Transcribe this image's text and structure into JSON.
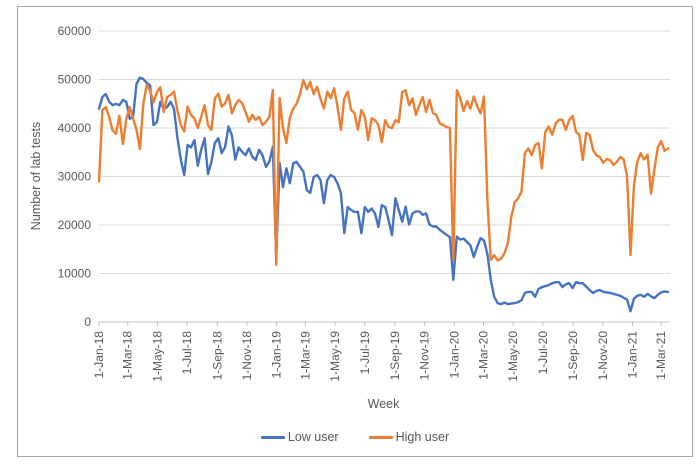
{
  "figure": {
    "background": "#ffffff",
    "border_color": "#a8a8a8",
    "text_color": "#595959",
    "gridline_color": "#d9d9d9",
    "axisline_color": "#bfbfbf"
  },
  "chart_data": {
    "type": "line",
    "title": "",
    "xlabel": "Week",
    "ylabel": "Number of lab tests",
    "ylim": [
      0,
      60000
    ],
    "grid": "horizontal",
    "legend_position": "bottom",
    "x_unit": "weekly starting 1-Jan-18",
    "y_ticks": [
      "0",
      "10000",
      "20000",
      "30000",
      "40000",
      "50000",
      "60000"
    ],
    "x_ticks": [
      {
        "label": "1-Jan-18",
        "week": 0
      },
      {
        "label": "1-Mar-18",
        "week": 8.43
      },
      {
        "label": "1-May-18",
        "week": 17.14
      },
      {
        "label": "1-Jul-18",
        "week": 25.86
      },
      {
        "label": "1-Sep-18",
        "week": 34.71
      },
      {
        "label": "1-Nov-18",
        "week": 43.43
      },
      {
        "label": "1-Jan-19",
        "week": 52.14
      },
      {
        "label": "1-Mar-19",
        "week": 60.57
      },
      {
        "label": "1-May-19",
        "week": 69.29
      },
      {
        "label": "1-Jul-19",
        "week": 78
      },
      {
        "label": "1-Sep-19",
        "week": 86.86
      },
      {
        "label": "1-Nov-19",
        "week": 95.57
      },
      {
        "label": "1-Jan-20",
        "week": 104.29
      },
      {
        "label": "1-Mar-20",
        "week": 112.86
      },
      {
        "label": "1-May-20",
        "week": 121.57
      },
      {
        "label": "1-Jul-20",
        "week": 130.29
      },
      {
        "label": "1-Sep-20",
        "week": 139.14
      },
      {
        "label": "1-Nov-20",
        "week": 147.86
      },
      {
        "label": "1-Jan-21",
        "week": 156.57
      },
      {
        "label": "1-Mar-21",
        "week": 165
      }
    ],
    "series": [
      {
        "name": "Low user",
        "color": "#4472C4",
        "values": [
          44000,
          46400,
          47000,
          45400,
          44700,
          45000,
          44700,
          45800,
          45400,
          41900,
          42300,
          49100,
          50400,
          50100,
          49300,
          48800,
          40600,
          41200,
          45400,
          43900,
          44300,
          45400,
          44000,
          38000,
          33500,
          30300,
          36500,
          36000,
          37500,
          32200,
          35500,
          37900,
          30500,
          33000,
          36900,
          37900,
          34800,
          36100,
          40300,
          38500,
          33500,
          36000,
          35100,
          34400,
          35800,
          34100,
          33400,
          35500,
          34400,
          32000,
          33100,
          36100,
          13400,
          32800,
          27800,
          31700,
          28600,
          32700,
          33000,
          32000,
          31000,
          27200,
          26600,
          29900,
          30300,
          29300,
          24500,
          29300,
          30300,
          29900,
          28600,
          26600,
          18300,
          23700,
          23100,
          22700,
          22700,
          18300,
          23700,
          22700,
          23400,
          22400,
          19600,
          24100,
          23700,
          21000,
          17900,
          25500,
          23100,
          20700,
          23800,
          20100,
          22400,
          22800,
          22800,
          22100,
          22400,
          20100,
          19700,
          19700,
          19000,
          18500,
          18000,
          17500,
          8700,
          17600,
          17000,
          17200,
          16500,
          15800,
          13400,
          15500,
          17300,
          16800,
          14000,
          8700,
          5200,
          3900,
          3700,
          4000,
          3700,
          3800,
          3900,
          4100,
          4500,
          6000,
          6200,
          6200,
          5200,
          6800,
          7200,
          7400,
          7600,
          8000,
          8200,
          8200,
          7200,
          7800,
          8000,
          7000,
          8200,
          8000,
          8000,
          7300,
          6600,
          6000,
          6400,
          6600,
          6200,
          6100,
          6000,
          5800,
          5600,
          5400,
          5000,
          4600,
          2200,
          4800,
          5400,
          5600,
          5200,
          5800,
          5300,
          4900,
          5600,
          6100,
          6300,
          6200
        ]
      },
      {
        "name": "High user",
        "color": "#ED7D31",
        "values": [
          29000,
          43700,
          44300,
          42200,
          39500,
          38800,
          42500,
          36700,
          41900,
          44300,
          42000,
          39600,
          35700,
          45000,
          48800,
          47800,
          45300,
          47400,
          48400,
          43300,
          46400,
          46800,
          47500,
          43700,
          40600,
          39300,
          44400,
          42700,
          42000,
          40000,
          42300,
          44700,
          40600,
          39600,
          46100,
          47100,
          44400,
          45100,
          46800,
          43000,
          44700,
          45800,
          45100,
          43400,
          41300,
          42700,
          41700,
          42300,
          40600,
          41300,
          42300,
          47800,
          11800,
          46200,
          40000,
          36900,
          42100,
          44000,
          45000,
          47000,
          49900,
          48000,
          49500,
          47000,
          48500,
          46000,
          44000,
          47500,
          46100,
          48200,
          44400,
          39600,
          46100,
          47500,
          43700,
          43100,
          39600,
          43700,
          42300,
          37500,
          42000,
          41600,
          40600,
          37100,
          41600,
          40200,
          40000,
          41600,
          41200,
          47400,
          47800,
          44700,
          46100,
          42700,
          44700,
          46400,
          43300,
          45800,
          43100,
          42700,
          41000,
          40600,
          40200,
          40000,
          12800,
          47800,
          46200,
          43500,
          45500,
          44000,
          46500,
          44500,
          43000,
          46500,
          25000,
          12800,
          13800,
          12700,
          13000,
          14200,
          16300,
          21700,
          24700,
          25500,
          26900,
          34800,
          35800,
          34400,
          36500,
          36900,
          31700,
          39200,
          40300,
          38600,
          40900,
          41700,
          41700,
          39600,
          41600,
          42500,
          39200,
          38600,
          33400,
          39000,
          38600,
          35500,
          34400,
          34000,
          32800,
          33600,
          33400,
          32400,
          33000,
          34000,
          33500,
          30000,
          13800,
          28000,
          33000,
          34800,
          33500,
          34500,
          26500,
          31500,
          36000,
          37300,
          35300,
          35800
        ]
      }
    ]
  }
}
